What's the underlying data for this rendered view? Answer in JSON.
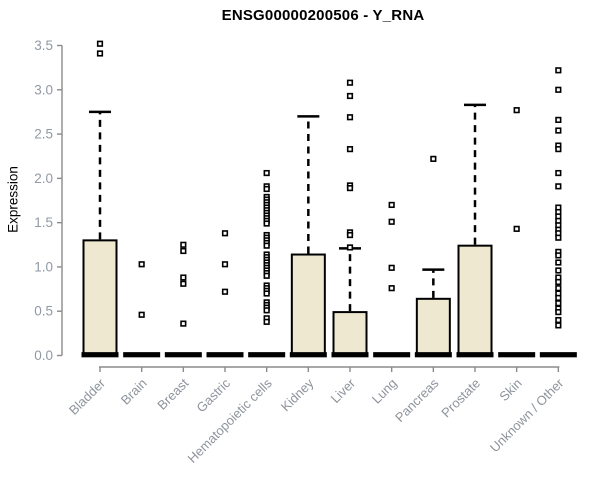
{
  "chart_data": {
    "type": "boxplot",
    "title": "ENSG00000200506 - Y_RNA",
    "ylabel": "Expression",
    "ylim": [
      0.0,
      3.5
    ],
    "yticks": [
      0.0,
      0.5,
      1.0,
      1.5,
      2.0,
      2.5,
      3.0,
      3.5
    ],
    "grid": "off",
    "colors": {
      "box_fill": "#EDE8CF",
      "box_stroke": "#000000",
      "median": "#000000",
      "whisker": "#000000",
      "point_fill": "#FFFFFF",
      "point_stroke": "#000000",
      "axis_line": "#8B8B8B",
      "axis_text": "#9099A4",
      "category_text": "#8E939C",
      "title_text": "#000000"
    },
    "categories": [
      "Bladder",
      "Brain",
      "Breast",
      "Gastric",
      "Hematopoietic cells",
      "Kidney",
      "Liver",
      "Lung",
      "Pancreas",
      "Prostate",
      "Skin",
      "Unknown / Other"
    ],
    "series": [
      {
        "label": "Bladder",
        "box": {
          "q1": 0.0,
          "median": 0.02,
          "q3": 1.3,
          "upper_whisker": 2.75
        },
        "points": [
          3.52,
          3.41
        ]
      },
      {
        "label": "Brain",
        "box": {
          "q1": 0.0,
          "median": 0.02,
          "q3": 0.0
        },
        "points": [
          1.03,
          0.46
        ]
      },
      {
        "label": "Breast",
        "box": {
          "q1": 0.0,
          "median": 0.02,
          "q3": 0.0
        },
        "points": [
          1.25,
          1.18,
          0.88,
          0.81,
          0.36
        ]
      },
      {
        "label": "Gastric",
        "box": {
          "q1": 0.0,
          "median": 0.02,
          "q3": 0.0
        },
        "points": [
          1.38,
          1.03,
          0.72
        ]
      },
      {
        "label": "Hematopoietic cells",
        "box": {
          "q1": 0.0,
          "median": 0.02,
          "q3": 0.0
        },
        "points": [
          2.06,
          1.91,
          1.88,
          1.79,
          1.76,
          1.73,
          1.7,
          1.67,
          1.64,
          1.61,
          1.58,
          1.55,
          1.52,
          1.49,
          1.36,
          1.33,
          1.3,
          1.27,
          1.24,
          1.14,
          1.11,
          1.08,
          1.05,
          1.02,
          0.99,
          0.96,
          0.93,
          0.9,
          0.79,
          0.76,
          0.73,
          0.7,
          0.6,
          0.57,
          0.54,
          0.51,
          0.42,
          0.38
        ]
      },
      {
        "label": "Kidney",
        "box": {
          "q1": 0.0,
          "median": 0.02,
          "q3": 1.14,
          "upper_whisker": 2.7
        },
        "points": []
      },
      {
        "label": "Liver",
        "box": {
          "q1": 0.0,
          "median": 0.02,
          "q3": 0.49,
          "upper_whisker": 1.21
        },
        "points": [
          3.08,
          2.93,
          2.69,
          2.33,
          1.92,
          1.89,
          1.39,
          1.36,
          1.22
        ]
      },
      {
        "label": "Lung",
        "box": {
          "q1": 0.0,
          "median": 0.02,
          "q3": 0.0
        },
        "points": [
          1.7,
          1.51,
          0.99,
          0.76
        ]
      },
      {
        "label": "Pancreas",
        "box": {
          "q1": 0.0,
          "median": 0.02,
          "q3": 0.64,
          "upper_whisker": 0.97
        },
        "points": [
          2.22
        ]
      },
      {
        "label": "Prostate",
        "box": {
          "q1": 0.0,
          "median": 0.02,
          "q3": 1.24,
          "upper_whisker": 2.83
        },
        "points": []
      },
      {
        "label": "Skin",
        "box": {
          "q1": 0.0,
          "median": 0.02,
          "q3": 0.0
        },
        "points": [
          2.77,
          1.43
        ]
      },
      {
        "label": "Unknown / Other",
        "box": {
          "q1": 0.0,
          "median": 0.02,
          "q3": 0.0
        },
        "points": [
          3.22,
          3.0,
          2.66,
          2.54,
          2.37,
          2.33,
          2.06,
          1.91,
          1.67,
          1.62,
          1.57,
          1.52,
          1.47,
          1.42,
          1.38,
          1.33,
          1.17,
          1.13,
          1.05,
          0.96,
          0.88,
          0.83,
          0.76,
          0.7,
          0.65,
          0.59,
          0.53,
          0.49,
          0.4,
          0.34
        ]
      }
    ]
  }
}
